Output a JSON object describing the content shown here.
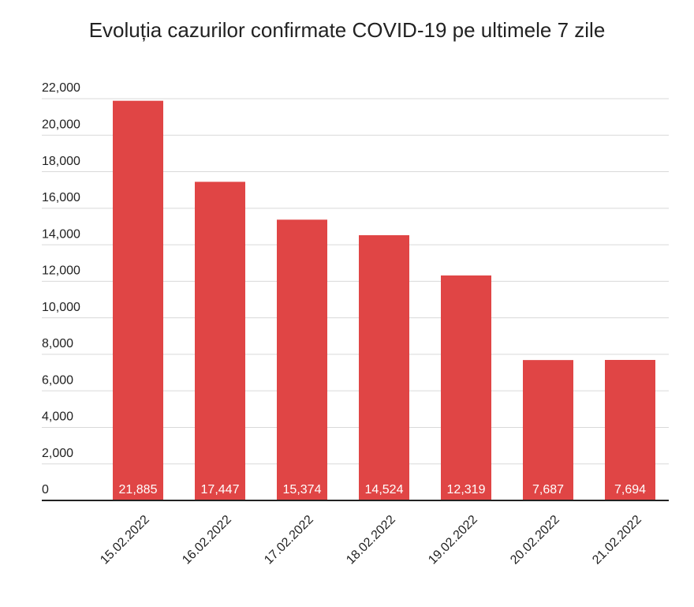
{
  "chart_data": {
    "type": "bar",
    "title": "Evoluția cazurilor confirmate COVID-19 pe ultimele 7 zile",
    "categories": [
      "15.02.2022",
      "16.02.2022",
      "17.02.2022",
      "18.02.2022",
      "19.02.2022",
      "20.02.2022",
      "21.02.2022"
    ],
    "values": [
      21885,
      17447,
      15374,
      14524,
      12319,
      7687,
      7694
    ],
    "value_labels": [
      "21,885",
      "17,447",
      "15,374",
      "14,524",
      "12,319",
      "7,687",
      "7,694"
    ],
    "color": "#e04545",
    "ylim": [
      0,
      22000
    ],
    "yticks": [
      0,
      {
        "value": 2000,
        "label": "2,000"
      },
      {
        "value": 4000,
        "label": "4,000"
      },
      {
        "value": 6000,
        "label": "6,000"
      },
      {
        "value": 8000,
        "label": "8,000"
      },
      {
        "value": 10000,
        "label": "10,000"
      },
      {
        "value": 12000,
        "label": "12,000"
      },
      {
        "value": 14000,
        "label": "14,000"
      },
      {
        "value": 16000,
        "label": "16,000"
      },
      {
        "value": 18000,
        "label": "18,000"
      },
      {
        "value": 20000,
        "label": "20,000"
      },
      {
        "value": 22000,
        "label": "22,000"
      }
    ],
    "grid": true
  }
}
